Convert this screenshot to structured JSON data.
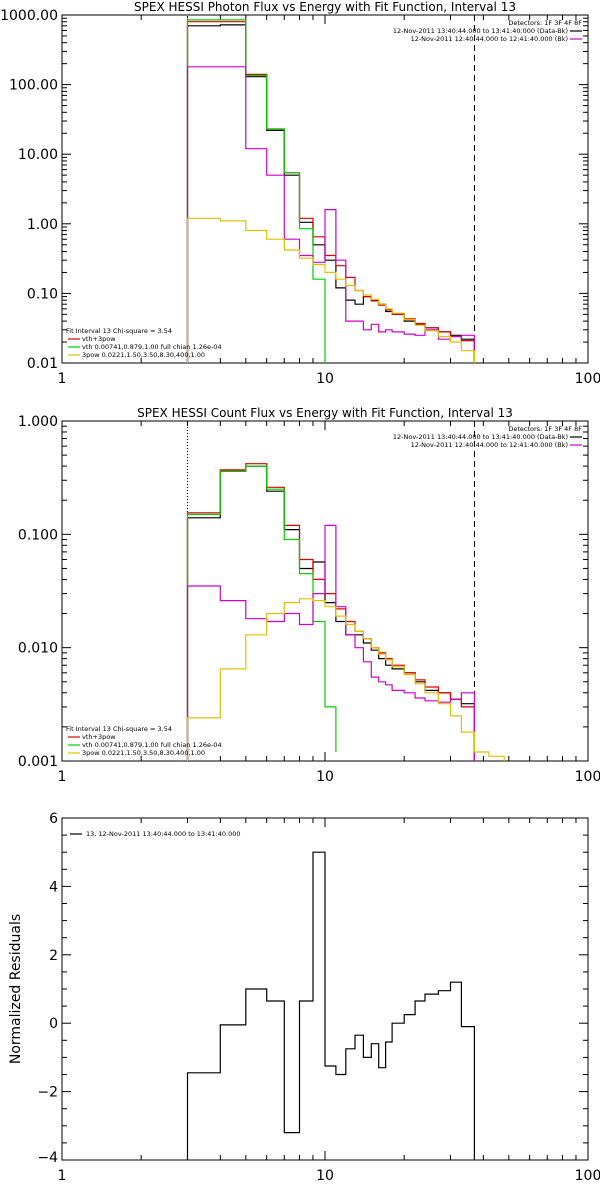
{
  "colors": {
    "black": "#000000",
    "red": "#e00000",
    "green": "#00d000",
    "magenta": "#d000d0",
    "yellow": "#e0c000",
    "orange": "#ff8000"
  },
  "chart_data": [
    {
      "type": "line",
      "title": "SPEX HESSI Photon Flux vs Energy with Fit Function, Interval 13",
      "xscale": "log",
      "yscale": "log",
      "xlim": [
        1,
        100
      ],
      "ylim": [
        0.01,
        1000
      ],
      "xticks": [
        1,
        10,
        100
      ],
      "xticklabels": [
        "1",
        "10",
        "100"
      ],
      "yticks": [
        0.01,
        0.1,
        1,
        10,
        100,
        1000
      ],
      "yticklabels": [
        "0.01",
        "0.10",
        "1.00",
        "10.00",
        "100.00",
        "1000.00"
      ],
      "vlines": [
        {
          "x": 3,
          "style": "dotted",
          "color": "orange"
        },
        {
          "x": 37,
          "style": "dashed",
          "color": "black"
        }
      ],
      "legend_topright": [
        "Detectors: 1F 3F 4F 8F",
        "12-Nov-2011 13:40:44.000 to 13:41:40.000 (Data-Bk)",
        "12-Nov-2011 12:40:44.000 to 12:41:40.000 (Bk)"
      ],
      "legend_topright_colors": [
        "none",
        "black",
        "magenta"
      ],
      "legend_bottomleft": [
        "Fit Interval 13   Chi-square = 3.54",
        "vth+3pow",
        "vth 0.00741,0.879,1.00  full chian 1.26e-04",
        "3pow 0.0221,1.50,3.50,8.30,400,1.00"
      ],
      "legend_bottomleft_colors": [
        "none",
        "red",
        "green",
        "yellow"
      ],
      "series": [
        {
          "color": "black",
          "edges": [
            3,
            4,
            5,
            6,
            7,
            8,
            9,
            10,
            11,
            12,
            13,
            14,
            15,
            16,
            17,
            18,
            20,
            22,
            24,
            27,
            30,
            33,
            37
          ],
          "values": [
            700,
            720,
            130,
            22,
            5,
            1.05,
            0.5,
            0.3,
            0.12,
            0.08,
            0.07,
            0.09,
            0.08,
            0.07,
            0.055,
            0.05,
            0.04,
            0.036,
            0.032,
            0.028,
            0.025,
            0.022
          ]
        },
        {
          "color": "red",
          "edges": [
            3,
            4,
            5,
            6,
            7,
            8,
            9,
            10,
            11,
            12,
            13,
            14,
            15,
            16,
            17,
            18,
            20,
            22,
            24,
            27,
            30,
            33,
            37
          ],
          "values": [
            800,
            800,
            140,
            23,
            5.4,
            1.2,
            0.65,
            0.35,
            0.25,
            0.17,
            0.11,
            0.09,
            0.078,
            0.068,
            0.058,
            0.05,
            0.043,
            0.037,
            0.032,
            0.028,
            0.024,
            0.021
          ]
        },
        {
          "color": "green",
          "edges": [
            3,
            4,
            5,
            6,
            7,
            8,
            9,
            10
          ],
          "values": [
            850,
            850,
            135,
            23,
            5.4,
            0.85,
            0.16
          ]
        },
        {
          "color": "magenta",
          "edges": [
            3,
            4,
            5,
            6,
            7,
            8,
            9,
            10,
            11,
            12,
            13,
            14,
            15,
            16,
            17,
            18,
            20,
            22,
            24,
            27,
            30,
            33,
            37
          ],
          "values": [
            180,
            180,
            12,
            5,
            0.6,
            0.35,
            0.28,
            1.6,
            0.3,
            0.04,
            0.04,
            0.03,
            0.036,
            0.028,
            0.03,
            0.028,
            0.026,
            0.025,
            0.03,
            0.022,
            0.024,
            0.025
          ]
        },
        {
          "color": "yellow",
          "edges": [
            3,
            4,
            5,
            6,
            7,
            8,
            9,
            10,
            11,
            12,
            13,
            14,
            15,
            16,
            17,
            18,
            20,
            22,
            24,
            27,
            30,
            33,
            37
          ],
          "values": [
            1.2,
            1.1,
            0.8,
            0.6,
            0.42,
            0.32,
            0.26,
            0.2,
            0.16,
            0.13,
            0.11,
            0.095,
            0.082,
            0.07,
            0.06,
            0.052,
            0.042,
            0.035,
            0.029,
            0.024,
            0.02,
            0.015
          ]
        }
      ]
    },
    {
      "type": "line",
      "title": "SPEX HESSI Count Flux vs Energy with Fit Function, Interval 13",
      "xscale": "log",
      "yscale": "log",
      "xlim": [
        1,
        100
      ],
      "ylim": [
        0.001,
        1
      ],
      "xticks": [
        1,
        10,
        100
      ],
      "xticklabels": [
        "1",
        "10",
        "100"
      ],
      "yticks": [
        0.001,
        0.01,
        0.1,
        1
      ],
      "yticklabels": [
        "0.001",
        "0.010",
        "0.100",
        "1.000"
      ],
      "vlines": [
        {
          "x": 3,
          "style": "dotted",
          "color": "black"
        },
        {
          "x": 37,
          "style": "dashed",
          "color": "black"
        }
      ],
      "legend_topright": [
        "Detectors: 1F 3F 4F 8F",
        "12-Nov-2011 13:40:44.000 to 13:41:40.000 (Data-Bk)",
        "12-Nov-2011 12:40:44.000 to 12:41:40.000 (Bk)"
      ],
      "legend_topright_colors": [
        "none",
        "black",
        "magenta"
      ],
      "legend_bottomleft": [
        "Fit Interval 13   Chi-square = 3.54",
        "vth+3pow",
        "vth 0.00741,0.879,1.00  full chian 1.26e-04",
        "3pow 0.0221,1.50,3.50,8.30,400,1.00"
      ],
      "legend_bottomleft_colors": [
        "none",
        "red",
        "green",
        "yellow"
      ],
      "series": [
        {
          "color": "black",
          "edges": [
            3,
            4,
            5,
            6,
            7,
            8,
            9,
            10,
            11,
            12,
            13,
            14,
            15,
            16,
            17,
            18,
            20,
            22,
            24,
            27,
            30,
            33,
            37
          ],
          "values": [
            0.14,
            0.36,
            0.4,
            0.24,
            0.11,
            0.05,
            0.057,
            0.025,
            0.017,
            0.013,
            0.013,
            0.011,
            0.0095,
            0.008,
            0.007,
            0.0065,
            0.006,
            0.005,
            0.0042,
            0.004,
            0.0035,
            0.0032
          ]
        },
        {
          "color": "red",
          "edges": [
            3,
            4,
            5,
            6,
            7,
            8,
            9,
            10,
            11,
            12,
            13,
            14,
            15,
            16,
            17,
            18,
            20,
            22,
            24,
            27,
            30,
            33,
            37
          ],
          "values": [
            0.155,
            0.37,
            0.42,
            0.26,
            0.12,
            0.06,
            0.04,
            0.03,
            0.022,
            0.017,
            0.014,
            0.012,
            0.01,
            0.009,
            0.008,
            0.007,
            0.006,
            0.0052,
            0.0045,
            0.004,
            0.0035,
            0.003
          ]
        },
        {
          "color": "green",
          "edges": [
            3,
            4,
            5,
            6,
            7,
            8,
            9,
            10,
            11
          ],
          "values": [
            0.15,
            0.36,
            0.4,
            0.25,
            0.09,
            0.045,
            0.017,
            0.003,
            0.0012
          ]
        },
        {
          "color": "magenta",
          "edges": [
            3,
            4,
            5,
            6,
            7,
            8,
            9,
            10,
            11,
            12,
            13,
            14,
            15,
            16,
            17,
            18,
            20,
            22,
            24,
            27,
            30,
            33,
            37
          ],
          "values": [
            0.035,
            0.026,
            0.018,
            0.017,
            0.02,
            0.016,
            0.03,
            0.12,
            0.023,
            0.013,
            0.01,
            0.0075,
            0.0055,
            0.005,
            0.0047,
            0.0042,
            0.004,
            0.0036,
            0.0034,
            0.0033,
            0.0035,
            0.004
          ]
        },
        {
          "color": "yellow",
          "edges": [
            3,
            4,
            5,
            6,
            7,
            8,
            9,
            10,
            11,
            12,
            13,
            14,
            15,
            16,
            17,
            18,
            20,
            22,
            24,
            27,
            30,
            33,
            37,
            42,
            48
          ],
          "values": [
            0.0024,
            0.0065,
            0.013,
            0.02,
            0.025,
            0.027,
            0.026,
            0.023,
            0.019,
            0.016,
            0.014,
            0.012,
            0.01,
            0.0088,
            0.0078,
            0.0068,
            0.0058,
            0.0048,
            0.004,
            0.0032,
            0.0025,
            0.0018,
            0.0012,
            0.0011
          ]
        }
      ]
    },
    {
      "type": "line",
      "xscale": "log",
      "yscale": "linear",
      "xlim": [
        1,
        100
      ],
      "ylim": [
        -4,
        6
      ],
      "xticks": [
        1,
        10,
        100
      ],
      "xticklabels": [
        "1",
        "10",
        "100"
      ],
      "yticks": [
        -4,
        -2,
        0,
        2,
        4,
        6
      ],
      "yticklabels": [
        "−4",
        "−2",
        "0",
        "2",
        "4",
        "6"
      ],
      "ylabel": "Normalized Residuals",
      "legend_topleft": [
        "13, 12-Nov-2011 13:40:44.000 to 13:41:40.000"
      ],
      "series": [
        {
          "color": "black",
          "edges": [
            3,
            4,
            5,
            6,
            7,
            8,
            9,
            10,
            11,
            12,
            13,
            14,
            15,
            16,
            17,
            18,
            20,
            22,
            24,
            27,
            30,
            33,
            37
          ],
          "values": [
            -1.45,
            -0.05,
            1.0,
            0.65,
            -3.2,
            0.65,
            5.0,
            -1.25,
            -1.5,
            -0.75,
            -0.35,
            -1.0,
            -0.6,
            -1.3,
            -0.55,
            0.0,
            0.25,
            0.65,
            0.85,
            0.95,
            1.2,
            -0.1
          ]
        }
      ]
    }
  ]
}
